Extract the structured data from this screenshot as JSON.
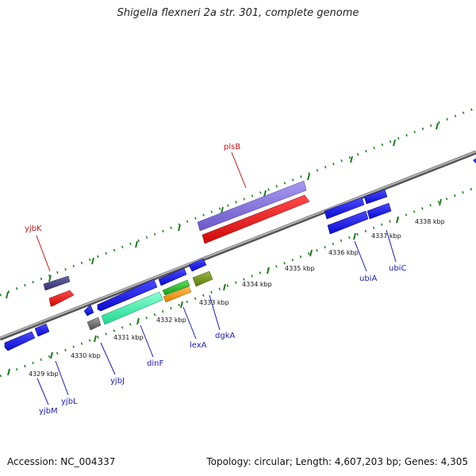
{
  "title": "Shigella flexneri 2a str. 301, complete genome",
  "footer": {
    "accession": "Accession: NC_004337",
    "summary": "Topology: circular; Length: 4,607,203 bp; Genes: 4,305"
  },
  "colors": {
    "backbone": "#8a8a8a",
    "tick": "#1e7b1e",
    "forward_label": "#c81414",
    "reverse_label": "#1a1ab4"
  },
  "scale_labels": [
    "4329 kbp",
    "4330 kbp",
    "4331 kbp",
    "4332 kbp",
    "4333 kbp",
    "4334 kbp",
    "4335 kbp",
    "4336 kbp",
    "4337 kbp",
    "4338 kbp"
  ],
  "gene_labels": {
    "forward": [
      "yjbK",
      "plsB"
    ],
    "reverse": [
      "yjbM",
      "yjbL",
      "yjbJ",
      "dinF",
      "lexA",
      "dgkA",
      "ubiA",
      "ubiC"
    ]
  }
}
